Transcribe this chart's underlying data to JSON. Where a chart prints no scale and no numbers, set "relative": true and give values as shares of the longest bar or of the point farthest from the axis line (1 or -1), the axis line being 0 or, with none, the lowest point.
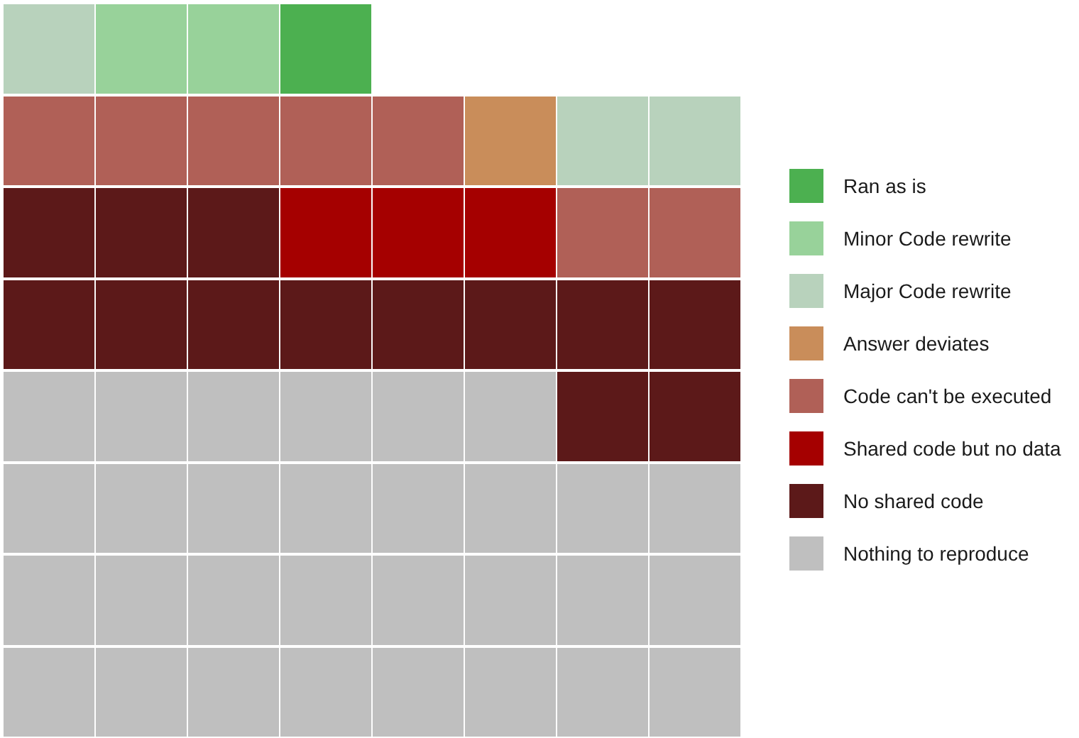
{
  "chart_data": {
    "type": "bar",
    "stacked": true,
    "relative": true,
    "legend": "right",
    "categories": [
      null,
      null,
      null,
      null,
      null,
      null,
      null,
      null
    ],
    "series": [
      {
        "name": "Nothing to reproduce",
        "color": "#bfbfbf",
        "values": [
          0.5,
          0.5,
          0.5,
          0.5,
          0.5,
          0.5,
          0.375,
          0.375
        ]
      },
      {
        "name": "No shared code",
        "color": "#5c1919",
        "values": [
          0.25,
          0.25,
          0.25,
          0.125,
          0.125,
          0.125,
          0.25,
          0.25
        ]
      },
      {
        "name": "Shared code but no data",
        "color": "#a50000",
        "values": [
          null,
          null,
          null,
          0.125,
          0.125,
          0.125,
          null,
          null
        ]
      },
      {
        "name": "Code can't be executed",
        "color": "#b06057",
        "values": [
          0.125,
          0.125,
          0.125,
          0.125,
          0.125,
          null,
          0.125,
          0.125
        ]
      },
      {
        "name": "Answer deviates",
        "color": "#c98d5a",
        "values": [
          null,
          null,
          null,
          null,
          null,
          0.125,
          null,
          null
        ]
      },
      {
        "name": "Major Code rewrite",
        "color": "#b8d2bc",
        "values": [
          0.125,
          null,
          null,
          null,
          null,
          null,
          0.125,
          0.125
        ]
      },
      {
        "name": "Minor Code rewrite",
        "color": "#98d29a",
        "values": [
          null,
          0.125,
          0.125,
          null,
          null,
          null,
          null,
          null
        ]
      },
      {
        "name": "Ran as is",
        "color": "#4cb050",
        "values": [
          null,
          null,
          null,
          0.125,
          null,
          null,
          null,
          null
        ]
      }
    ]
  }
}
